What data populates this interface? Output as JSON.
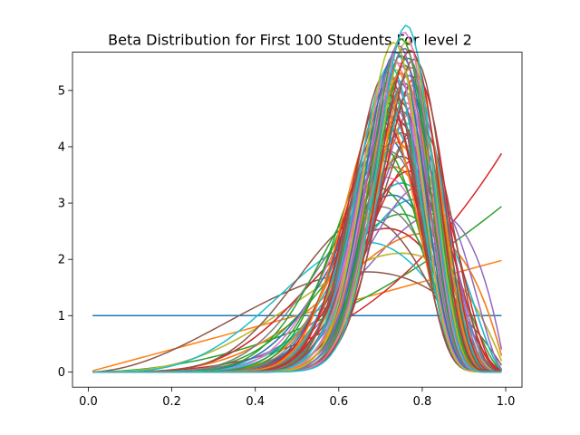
{
  "chart_data": {
    "type": "line",
    "title": "Beta Distribution for First 100 Students For level 2",
    "xlabel": "",
    "ylabel": "",
    "xlim": [
      -0.038,
      1.039
    ],
    "ylim": [
      -0.27,
      5.68
    ],
    "grid": false,
    "legend": "none",
    "x_ticks": [
      0.0,
      0.2,
      0.4,
      0.6,
      0.8,
      1.0
    ],
    "x_tick_labels": [
      "0.0",
      "0.2",
      "0.4",
      "0.6",
      "0.8",
      "1.0"
    ],
    "y_ticks": [
      0,
      1,
      2,
      3,
      4,
      5
    ],
    "y_tick_labels": [
      "0",
      "1",
      "2",
      "3",
      "4",
      "5"
    ],
    "x_range": [
      0.01,
      0.99
    ],
    "x_samples": 99,
    "colors": [
      "#1f77b4",
      "#ff7f0e",
      "#2ca02c",
      "#d62728",
      "#9467bd",
      "#8c564b",
      "#e377c2",
      "#7f7f7f",
      "#bcbd22",
      "#17becf"
    ],
    "series_params": [
      [
        1,
        1
      ],
      [
        2,
        1
      ],
      [
        3,
        1
      ],
      [
        4,
        1
      ],
      [
        6,
        2
      ],
      [
        3,
        2
      ],
      [
        4,
        2
      ],
      [
        5,
        2
      ],
      [
        4,
        2
      ],
      [
        5,
        3
      ],
      [
        6,
        3
      ],
      [
        5,
        2
      ],
      [
        7,
        3
      ],
      [
        6,
        3
      ],
      [
        8,
        3
      ],
      [
        7,
        4
      ],
      [
        9,
        4
      ],
      [
        8,
        4
      ],
      [
        10,
        4
      ],
      [
        8,
        3
      ],
      [
        9,
        4
      ],
      [
        11,
        4
      ],
      [
        10,
        5
      ],
      [
        12,
        4
      ],
      [
        9,
        3
      ],
      [
        12,
        5
      ],
      [
        11,
        5
      ],
      [
        13,
        5
      ],
      [
        11,
        4
      ],
      [
        10,
        4
      ],
      [
        14,
        5
      ],
      [
        12,
        5
      ],
      [
        13,
        6
      ],
      [
        11,
        4
      ],
      [
        15,
        5
      ],
      [
        13,
        5
      ],
      [
        16,
        6
      ],
      [
        15,
        6
      ],
      [
        14,
        5
      ],
      [
        17,
        6
      ],
      [
        16,
        7
      ],
      [
        18,
        6
      ],
      [
        15,
        7
      ],
      [
        17,
        7
      ],
      [
        19,
        6
      ],
      [
        16,
        6
      ],
      [
        18,
        7
      ],
      [
        14,
        6
      ],
      [
        20,
        7
      ],
      [
        17,
        6
      ],
      [
        19,
        7
      ],
      [
        15,
        6
      ],
      [
        21,
        7
      ],
      [
        18,
        8
      ],
      [
        20,
        8
      ],
      [
        16,
        5
      ],
      [
        22,
        8
      ],
      [
        19,
        8
      ],
      [
        21,
        8
      ],
      [
        17,
        7
      ],
      [
        23,
        8
      ],
      [
        20,
        7
      ],
      [
        22,
        9
      ],
      [
        18,
        7
      ],
      [
        24,
        9
      ],
      [
        21,
        9
      ],
      [
        23,
        9
      ],
      [
        19,
        7
      ],
      [
        25,
        9
      ],
      [
        22,
        8
      ],
      [
        24,
        8
      ],
      [
        20,
        9
      ],
      [
        26,
        9
      ],
      [
        23,
        10
      ],
      [
        25,
        10
      ],
      [
        21,
        8
      ],
      [
        27,
        10
      ],
      [
        24,
        10
      ],
      [
        26,
        10
      ],
      [
        22,
        7
      ],
      [
        28,
        10
      ],
      [
        25,
        8
      ],
      [
        27,
        9
      ],
      [
        23,
        7
      ],
      [
        29,
        10
      ],
      [
        26,
        11
      ],
      [
        28,
        11
      ],
      [
        24,
        8
      ],
      [
        30,
        10
      ],
      [
        27,
        11
      ],
      [
        29,
        11
      ],
      [
        25,
        9
      ],
      [
        31,
        11
      ],
      [
        28,
        9
      ],
      [
        30,
        11
      ],
      [
        26,
        8
      ],
      [
        32,
        11
      ],
      [
        29,
        10
      ],
      [
        31,
        12
      ],
      [
        33,
        11
      ]
    ]
  }
}
